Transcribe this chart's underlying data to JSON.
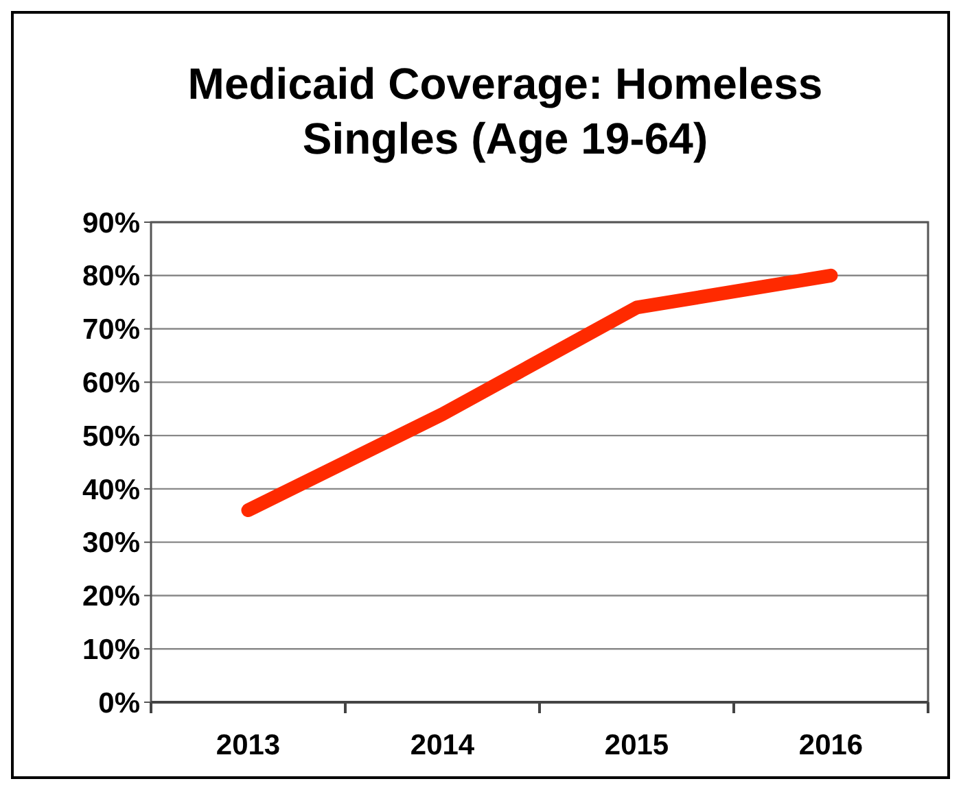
{
  "chart_data": {
    "type": "line",
    "title": "Medicaid Coverage: Homeless Singles (Age 19-64)",
    "categories": [
      "2013",
      "2014",
      "2015",
      "2016"
    ],
    "series": [
      {
        "color": "#ff2a00",
        "values": [
          36,
          54,
          74,
          80
        ]
      }
    ],
    "ylim": [
      0,
      90
    ],
    "yticks": [
      {
        "value": 0,
        "label": "0%"
      },
      {
        "value": 10,
        "label": "10%"
      },
      {
        "value": 20,
        "label": "20%"
      },
      {
        "value": 30,
        "label": "30%"
      },
      {
        "value": 40,
        "label": "40%"
      },
      {
        "value": 50,
        "label": "50%"
      },
      {
        "value": 60,
        "label": "60%"
      },
      {
        "value": 70,
        "label": "70%"
      },
      {
        "value": 80,
        "label": "80%"
      },
      {
        "value": 90,
        "label": "90%"
      }
    ],
    "grid": "y",
    "marker": "none",
    "line_style": "solid"
  }
}
